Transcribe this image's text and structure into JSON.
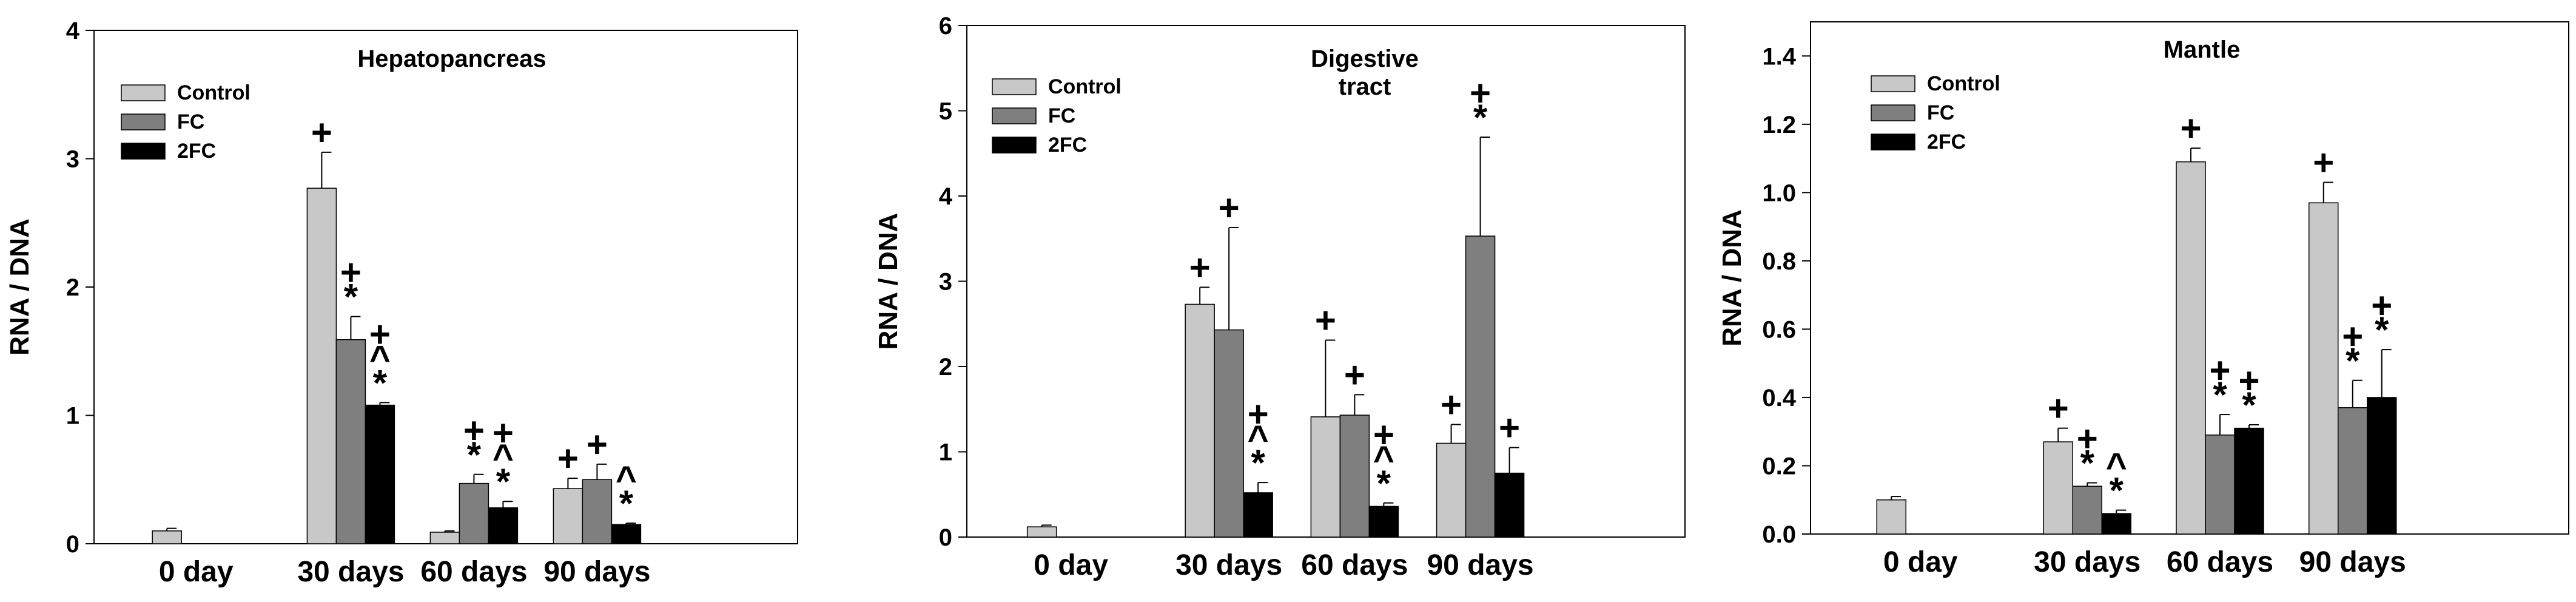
{
  "chart_data": [
    {
      "type": "bar",
      "title": "Hepatopancreas",
      "xlabel": "",
      "ylabel": "RNA / DNA",
      "ylim": [
        0,
        4
      ],
      "yticks": [
        "0",
        "1",
        "2",
        "3",
        "4"
      ],
      "categories": [
        "0 day",
        "30 days",
        "60 days",
        "90 days"
      ],
      "series": [
        {
          "name": "Control",
          "values": [
            0.1,
            2.77,
            0.09,
            0.43
          ],
          "errors": [
            0.02,
            0.28,
            0.01,
            0.08
          ]
        },
        {
          "name": "FC",
          "values": [
            null,
            1.59,
            0.47,
            0.5
          ],
          "errors": [
            null,
            0.18,
            0.07,
            0.12
          ]
        },
        {
          "name": "2FC",
          "values": [
            null,
            1.08,
            0.28,
            0.15
          ],
          "errors": [
            null,
            0.02,
            0.05,
            0.01
          ]
        }
      ],
      "annotations": [
        {
          "category": "30 days",
          "series": "Control",
          "lines": [
            "+"
          ]
        },
        {
          "category": "30 days",
          "series": "FC",
          "lines": [
            "+",
            "*"
          ]
        },
        {
          "category": "30 days",
          "series": "2FC",
          "lines": [
            "+",
            "^",
            "*"
          ]
        },
        {
          "category": "60 days",
          "series": "FC",
          "lines": [
            "+",
            "*"
          ]
        },
        {
          "category": "60 days",
          "series": "2FC",
          "lines": [
            "+",
            "^",
            "*"
          ]
        },
        {
          "category": "90 days",
          "series": "Control",
          "lines": [
            "+"
          ]
        },
        {
          "category": "90 days",
          "series": "FC",
          "lines": [
            "+"
          ]
        },
        {
          "category": "90 days",
          "series": "2FC",
          "lines": [
            "^",
            "*"
          ]
        }
      ],
      "legend_position": "top-left"
    },
    {
      "type": "bar",
      "title": "Digestive tract",
      "title_lines": [
        "Digestive",
        "tract"
      ],
      "xlabel": "",
      "ylabel": "RNA / DNA",
      "ylim": [
        0,
        6
      ],
      "yticks": [
        "0",
        "1",
        "2",
        "3",
        "4",
        "5",
        "6"
      ],
      "categories": [
        "0 day",
        "30 days",
        "60 days",
        "90 days"
      ],
      "series": [
        {
          "name": "Control",
          "values": [
            0.12,
            2.73,
            1.41,
            1.1
          ],
          "errors": [
            0.02,
            0.2,
            0.9,
            0.22
          ]
        },
        {
          "name": "FC",
          "values": [
            null,
            2.43,
            1.43,
            3.53
          ],
          "errors": [
            null,
            1.2,
            0.24,
            1.16
          ]
        },
        {
          "name": "2FC",
          "values": [
            null,
            0.52,
            0.36,
            0.75
          ],
          "errors": [
            null,
            0.12,
            0.04,
            0.3
          ]
        }
      ],
      "annotations": [
        {
          "category": "30 days",
          "series": "Control",
          "lines": [
            "+"
          ]
        },
        {
          "category": "30 days",
          "series": "FC",
          "lines": [
            "+"
          ]
        },
        {
          "category": "30 days",
          "series": "2FC",
          "lines": [
            "+",
            "^",
            "*"
          ]
        },
        {
          "category": "60 days",
          "series": "Control",
          "lines": [
            "+"
          ]
        },
        {
          "category": "60 days",
          "series": "FC",
          "lines": [
            "+"
          ]
        },
        {
          "category": "60 days",
          "series": "2FC",
          "lines": [
            "+",
            "^",
            "*"
          ]
        },
        {
          "category": "90 days",
          "series": "Control",
          "lines": [
            "+"
          ]
        },
        {
          "category": "90 days",
          "series": "FC",
          "lines": [
            "+",
            "*"
          ]
        },
        {
          "category": "90 days",
          "series": "2FC",
          "lines": [
            "+"
          ]
        }
      ],
      "legend_position": "top-left"
    },
    {
      "type": "bar",
      "title": "Mantle",
      "xlabel": "",
      "ylabel": "RNA / DNA",
      "ylim": [
        0,
        1.5
      ],
      "yticks": [
        "0.0",
        "0.2",
        "0.4",
        "0.6",
        "0.8",
        "1.0",
        "1.2",
        "1.4"
      ],
      "categories": [
        "0 day",
        "30 days",
        "60 days",
        "90 days"
      ],
      "series": [
        {
          "name": "Control",
          "values": [
            0.1,
            0.27,
            1.09,
            0.97
          ],
          "errors": [
            0.01,
            0.04,
            0.04,
            0.06
          ]
        },
        {
          "name": "FC",
          "values": [
            null,
            0.14,
            0.29,
            0.37
          ],
          "errors": [
            null,
            0.01,
            0.06,
            0.08
          ]
        },
        {
          "name": "2FC",
          "values": [
            null,
            0.06,
            0.31,
            0.4
          ],
          "errors": [
            null,
            0.01,
            0.01,
            0.14
          ]
        }
      ],
      "annotations": [
        {
          "category": "30 days",
          "series": "Control",
          "lines": [
            "+"
          ]
        },
        {
          "category": "30 days",
          "series": "FC",
          "lines": [
            "+",
            "*"
          ]
        },
        {
          "category": "30 days",
          "series": "2FC",
          "lines": [
            "^",
            "*"
          ]
        },
        {
          "category": "60 days",
          "series": "Control",
          "lines": [
            "+"
          ]
        },
        {
          "category": "60 days",
          "series": "FC",
          "lines": [
            "+",
            "*"
          ]
        },
        {
          "category": "60 days",
          "series": "2FC",
          "lines": [
            "+",
            "*"
          ]
        },
        {
          "category": "90 days",
          "series": "Control",
          "lines": [
            "+"
          ]
        },
        {
          "category": "90 days",
          "series": "FC",
          "lines": [
            "+",
            "*"
          ]
        },
        {
          "category": "90 days",
          "series": "2FC",
          "lines": [
            "+",
            "*"
          ]
        }
      ],
      "legend_position": "top-left"
    }
  ],
  "series_colors": {
    "Control": "#c8c8c8",
    "FC": "#7f7f7f",
    "2FC": "#000000"
  }
}
